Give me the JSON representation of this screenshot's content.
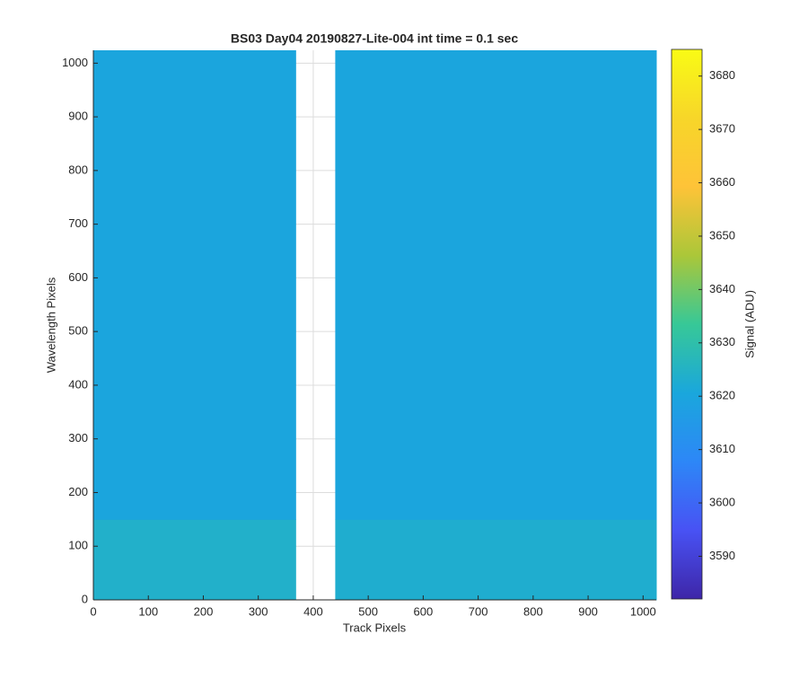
{
  "chart_data": {
    "type": "heatmap",
    "title": "BS03 Day04 20190827-Lite-004 int time = 0.1 sec",
    "xlabel": "Track Pixels",
    "ylabel": "Wavelength Pixels",
    "x_edges": [
      0,
      368,
      440,
      1024
    ],
    "y_edges": [
      0,
      150,
      1024
    ],
    "values": [
      [
        3624,
        null,
        3623
      ],
      [
        3620,
        null,
        3620
      ]
    ],
    "xlim": [
      0,
      1024
    ],
    "ylim": [
      0,
      1024
    ],
    "xticks": [
      0,
      100,
      200,
      300,
      400,
      500,
      600,
      700,
      800,
      900,
      1000
    ],
    "yticks": [
      0,
      100,
      200,
      300,
      400,
      500,
      600,
      700,
      800,
      900,
      1000
    ],
    "grid": true,
    "colorbar": {
      "label": "Signal (ADU)",
      "clim": [
        3582,
        3685
      ],
      "ticks": [
        3590,
        3600,
        3610,
        3620,
        3630,
        3640,
        3650,
        3660,
        3670,
        3680
      ]
    },
    "colormap": [
      "#3e26a8",
      "#4852f4",
      "#2d87f7",
      "#1aa7dc",
      "#37c897",
      "#abc739",
      "#fec338",
      "#f7d629",
      "#f9fb15"
    ]
  }
}
